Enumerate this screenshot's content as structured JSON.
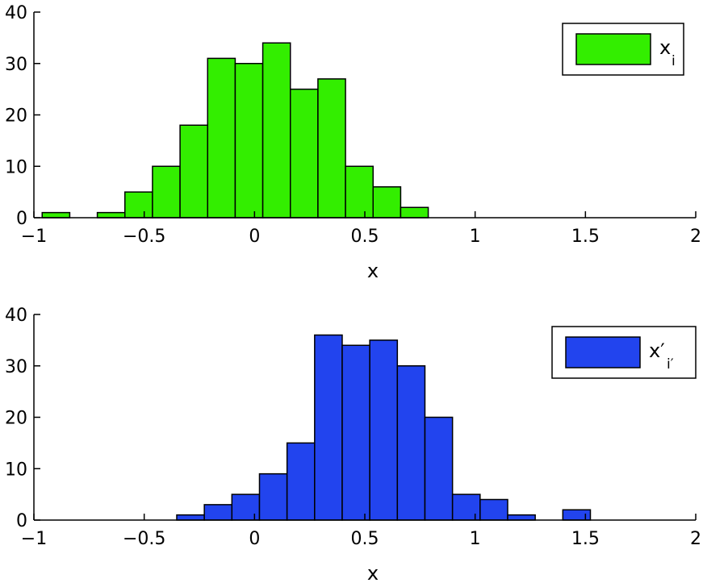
{
  "chart_data": [
    {
      "type": "bar",
      "histogram": true,
      "bin_width": 0.125,
      "bin_centers": [
        -0.9,
        -0.775,
        -0.65,
        -0.525,
        -0.4,
        -0.275,
        -0.15,
        -0.025,
        0.1,
        0.225,
        0.35,
        0.475,
        0.6,
        0.725
      ],
      "values": [
        1,
        0,
        1,
        5,
        10,
        18,
        31,
        30,
        34,
        25,
        27,
        10,
        6,
        2
      ],
      "color": "#33ee00",
      "xlim": [
        -1,
        2
      ],
      "ylim": [
        0,
        40
      ],
      "xticks": [
        -1,
        -0.5,
        0,
        0.5,
        1,
        1.5,
        2
      ],
      "xtick_labels": [
        "−1",
        "−0.5",
        "0",
        "0.5",
        "1",
        "1.5",
        "2"
      ],
      "yticks": [
        0,
        10,
        20,
        30,
        40
      ],
      "ytick_labels": [
        "0",
        "10",
        "20",
        "30",
        "40"
      ],
      "xlabel": "x",
      "legend": {
        "base": "x",
        "sub": "i",
        "placement": "top-right"
      },
      "grid": false
    },
    {
      "type": "bar",
      "histogram": true,
      "bin_width": 0.125,
      "bin_centers": [
        -0.29,
        -0.165,
        -0.04,
        0.085,
        0.21,
        0.335,
        0.46,
        0.585,
        0.71,
        0.835,
        0.96,
        1.085,
        1.21,
        1.335,
        1.46
      ],
      "values": [
        1,
        3,
        5,
        9,
        15,
        36,
        34,
        35,
        30,
        20,
        5,
        4,
        1,
        0,
        2
      ],
      "color": "#2244ee",
      "xlim": [
        -1,
        2
      ],
      "ylim": [
        0,
        40
      ],
      "xticks": [
        -1,
        -0.5,
        0,
        0.5,
        1,
        1.5,
        2
      ],
      "xtick_labels": [
        "−1",
        "−0.5",
        "0",
        "0.5",
        "1",
        "1.5",
        "2"
      ],
      "yticks": [
        0,
        10,
        20,
        30,
        40
      ],
      "ytick_labels": [
        "0",
        "10",
        "20",
        "30",
        "40"
      ],
      "xlabel": "x",
      "legend": {
        "base": "x′",
        "sub": "i′",
        "placement": "top-right"
      },
      "grid": false
    }
  ]
}
